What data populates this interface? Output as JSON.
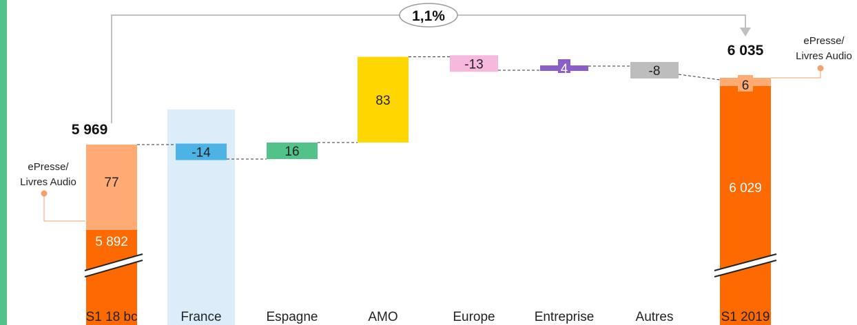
{
  "colors": {
    "accent_strip": "#52c18a",
    "highlight_band": "#dcedf9",
    "base_dark": "#ff6a00",
    "base_light": "#ffab73",
    "france": "#4db3e6",
    "espagne": "#52c18a",
    "amo": "#ffd700",
    "europe": "#f7b8dd",
    "entreprise": "#8a5fc8",
    "autres": "#bdbdbd",
    "callout": "#f4a269",
    "growth_arrow": "#c0c0c0"
  },
  "chart_data": {
    "type": "waterfall",
    "categories": [
      "S1 18  bc",
      "France",
      "Espagne",
      "AMO",
      "Europe",
      "Entreprise",
      "Autres",
      "S1 2019"
    ],
    "highlighted_category": "France",
    "start": {
      "category": "S1 18  bc",
      "total": 5969,
      "total_label": "5 969",
      "segments": [
        {
          "value": 5892,
          "label": "5 892"
        },
        {
          "value": 77,
          "label": "77"
        }
      ]
    },
    "steps": [
      {
        "category": "France",
        "value": -14,
        "label": "-14"
      },
      {
        "category": "Espagne",
        "value": 16,
        "label": "16"
      },
      {
        "category": "AMO",
        "value": 83,
        "label": "83"
      },
      {
        "category": "Europe",
        "value": -13,
        "label": "-13"
      },
      {
        "category": "Entreprise",
        "value": 4,
        "label": "4"
      },
      {
        "category": "Autres",
        "value": -8,
        "label": "-8"
      }
    ],
    "end": {
      "category": "S1 2019",
      "total": 6035,
      "total_label": "6 035",
      "segments": [
        {
          "value": 6029,
          "label": "6 029"
        },
        {
          "value": 6,
          "label": "6"
        }
      ]
    },
    "growth_label": "1,1%",
    "callouts": {
      "left": [
        "ePresse/",
        "Livres Audio"
      ],
      "right": [
        "ePresse/",
        "Livres Audio"
      ]
    },
    "axis_break": true
  }
}
